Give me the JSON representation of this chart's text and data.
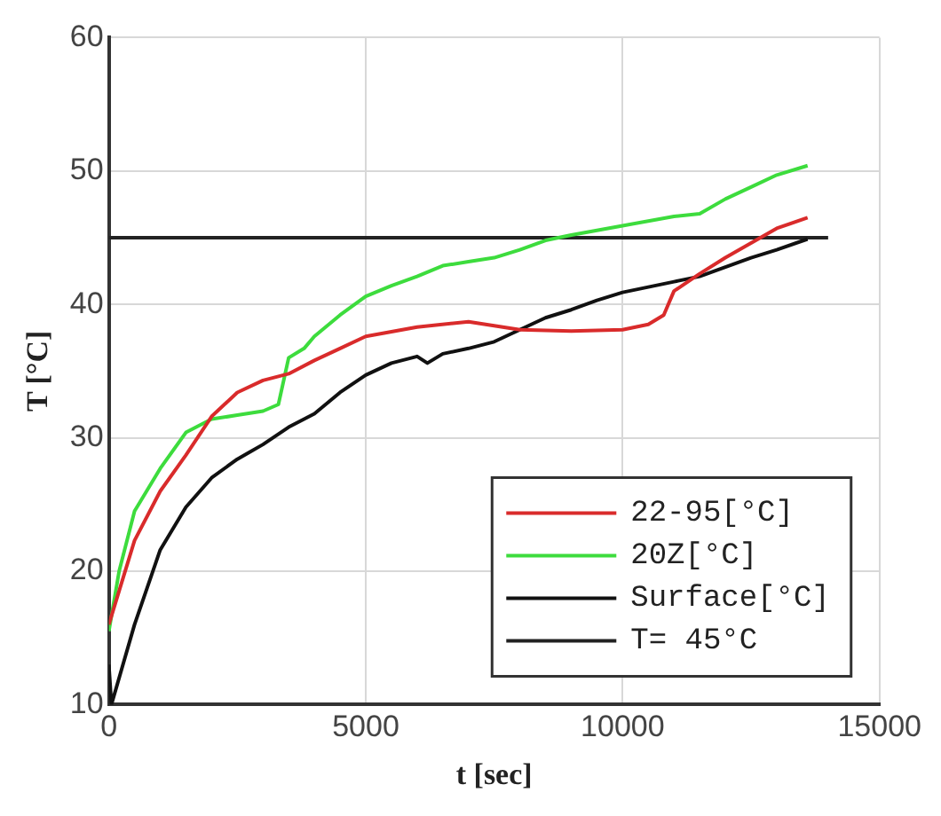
{
  "chart_data": {
    "type": "line",
    "xlabel": "t [sec]",
    "ylabel": "T [°C]",
    "xlim": [
      0,
      15000
    ],
    "xticks": [
      0,
      5000,
      10000,
      15000
    ],
    "ylim": [
      10,
      60
    ],
    "yticks": [
      10,
      20,
      30,
      40,
      50,
      60
    ],
    "grid": true,
    "legend": "bottom right",
    "marker": "none",
    "line_style": "solid",
    "series": [
      {
        "name": "22-95[°C]",
        "color": "#d92b2b",
        "x": [
          0,
          500,
          1000,
          1500,
          2000,
          2500,
          3000,
          3500,
          4000,
          4500,
          5000,
          6000,
          7000,
          8000,
          9000,
          10000,
          10500,
          10800,
          11000,
          11500,
          12000,
          12500,
          13000,
          13600
        ],
        "values": [
          16,
          22.3,
          26,
          28.7,
          31.6,
          33.4,
          34.3,
          34.8,
          35.8,
          36.7,
          37.6,
          38.3,
          38.7,
          38.1,
          38,
          38.1,
          38.5,
          39.2,
          41,
          42.3,
          43.5,
          44.6,
          45.7,
          46.5
        ]
      },
      {
        "name": "20Z[°C]",
        "color": "#3ddc3d",
        "x": [
          0,
          200,
          500,
          1000,
          1500,
          2000,
          2500,
          3000,
          3300,
          3500,
          3800,
          4000,
          4500,
          5000,
          5500,
          6000,
          6500,
          7000,
          7500,
          8000,
          8500,
          9000,
          10000,
          11000,
          11500,
          12000,
          12500,
          13000,
          13600
        ],
        "values": [
          15.5,
          20,
          24.5,
          27.7,
          30.4,
          31.4,
          31.7,
          32,
          32.5,
          36,
          36.7,
          37.6,
          39.2,
          40.6,
          41.4,
          42.1,
          42.9,
          43.2,
          43.5,
          44.1,
          44.8,
          45.2,
          45.9,
          46.6,
          46.8,
          47.9,
          48.8,
          49.7,
          50.4
        ]
      },
      {
        "name": "Surface[°C]",
        "color": "#111111",
        "x": [
          0,
          50,
          500,
          1000,
          1500,
          2000,
          2500,
          3000,
          3500,
          4000,
          4500,
          5000,
          5500,
          6000,
          6200,
          6500,
          7000,
          7500,
          8000,
          8500,
          9000,
          9500,
          10000,
          10500,
          11000,
          11500,
          12000,
          12500,
          13000,
          13600
        ],
        "values": [
          13,
          10,
          16,
          21.6,
          24.8,
          27,
          28.4,
          29.5,
          30.8,
          31.8,
          33.4,
          34.7,
          35.6,
          36.1,
          35.6,
          36.3,
          36.7,
          37.2,
          38.1,
          39,
          39.6,
          40.3,
          40.9,
          41.3,
          41.7,
          42.1,
          42.8,
          43.5,
          44.1,
          44.9
        ]
      },
      {
        "name": "T= 45°C",
        "color": "#222222",
        "x": [
          0,
          14000
        ],
        "values": [
          45,
          45
        ]
      }
    ]
  }
}
